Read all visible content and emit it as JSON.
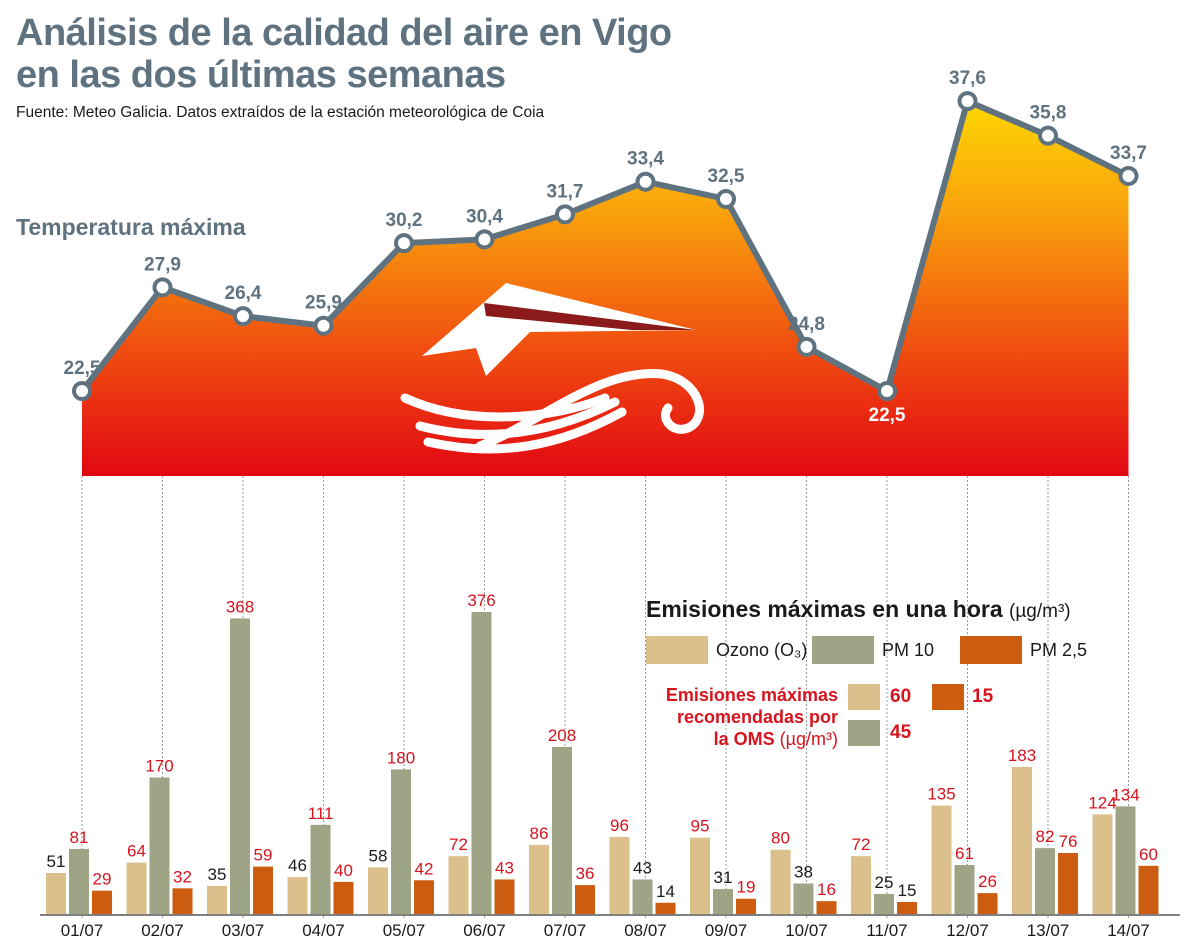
{
  "title_line1": "Análisis de la calidad del aire en Vigo",
  "title_line2": "en las dos últimas semanas",
  "source": "Fuente: Meteo Galicia. Datos extraídos de la estación meteorológica de Coia",
  "colors": {
    "ozone": "#dcc08c",
    "pm10": "#9ea486",
    "pm25": "#cc5c10",
    "over_limit_label": "#d7131d",
    "within_limit_label": "#1a1a1a",
    "temp_line": "#5f7280",
    "area_top": "#ffe400",
    "area_bottom": "#e30a13"
  },
  "chart_data": [
    {
      "type": "area",
      "title": "Temperatura máxima",
      "x": [
        "01/07",
        "02/07",
        "03/07",
        "04/07",
        "05/07",
        "06/07",
        "07/07",
        "08/07",
        "09/07",
        "10/07",
        "11/07",
        "12/07",
        "13/07",
        "14/07"
      ],
      "values": [
        22.5,
        27.9,
        26.4,
        25.9,
        30.2,
        30.4,
        31.7,
        33.4,
        32.5,
        24.8,
        22.5,
        37.6,
        35.8,
        33.7
      ],
      "value_labels": [
        "22,5",
        "27,9",
        "26,4",
        "25,9",
        "30,2",
        "30,4",
        "31,7",
        "33,4",
        "32,5",
        "24,8",
        "22,5",
        "37,6",
        "35,8",
        "33,7"
      ],
      "ylim": [
        18,
        38
      ]
    },
    {
      "type": "bar",
      "title": "Emisiones máximas en una hora",
      "unit": "(µg/m³)",
      "categories": [
        "01/07",
        "02/07",
        "03/07",
        "04/07",
        "05/07",
        "06/07",
        "07/07",
        "08/07",
        "09/07",
        "10/07",
        "11/07",
        "12/07",
        "13/07",
        "14/07"
      ],
      "series": [
        {
          "name": "Ozono (O₃)",
          "key": "ozone",
          "limit": 60,
          "values": [
            51,
            64,
            35,
            46,
            58,
            72,
            86,
            96,
            95,
            80,
            72,
            135,
            183,
            124
          ]
        },
        {
          "name": "PM 10",
          "key": "pm10",
          "limit": 45,
          "values": [
            81,
            170,
            368,
            111,
            180,
            376,
            208,
            43,
            31,
            38,
            25,
            61,
            82,
            134
          ]
        },
        {
          "name": "PM 2,5",
          "key": "pm25",
          "limit": 15,
          "values": [
            29,
            32,
            59,
            40,
            42,
            43,
            36,
            14,
            19,
            16,
            15,
            26,
            76,
            60
          ]
        }
      ],
      "ylim": [
        0,
        376
      ]
    }
  ],
  "legend": {
    "title": "Emisiones máximas en una hora",
    "unit": "(µg/m³)",
    "oms_text_line1": "Emisiones máximas",
    "oms_text_line2": "recomendadas por",
    "oms_text_line3": "la OMS",
    "oms_unit": "(µg/m³)",
    "oms_ozone": "60",
    "oms_pm25": "15",
    "oms_pm10": "45"
  }
}
